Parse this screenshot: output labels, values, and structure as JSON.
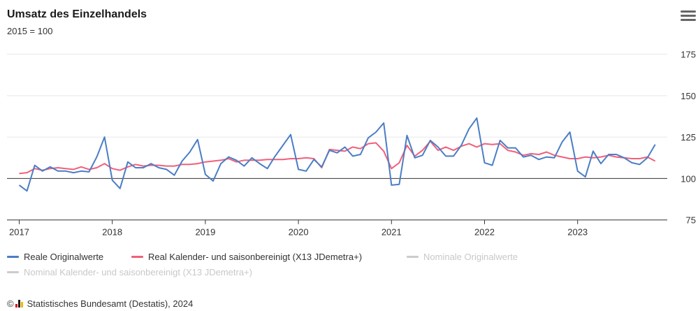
{
  "title": "Umsatz des Einzelhandels",
  "subtitle": "2015 = 100",
  "menu_icon": "hamburger-menu-icon",
  "source": {
    "copyright": "©",
    "logo_icon": "destatis-logo-icon",
    "text": "Statistisches Bundesamt (Destatis), 2024"
  },
  "colors": {
    "series_blue": "#4a7ec5",
    "series_red": "#f0607a",
    "inactive": "#cccccc",
    "gridline": "#e6e6e6",
    "baseline": "#333333"
  },
  "legend": [
    {
      "label": "Reale Originalwerte",
      "color": "#4a7ec5",
      "active": true
    },
    {
      "label": "Real Kalender- und saisonbereinigt (X13 JDemetra+)",
      "color": "#f0607a",
      "active": true
    },
    {
      "label": "Nominale Originalwerte",
      "color": "#cccccc",
      "active": false
    },
    {
      "label": "Nominal Kalender- und saisonbereinigt (X13 JDemetra+)",
      "color": "#cccccc",
      "active": false
    }
  ],
  "chart_data": {
    "type": "line",
    "title": "Umsatz des Einzelhandels",
    "subtitle": "2015 = 100",
    "x_start": "2017-01",
    "x_ticks": [
      "2017",
      "2018",
      "2019",
      "2020",
      "2021",
      "2022",
      "2023"
    ],
    "ylim": [
      75,
      175
    ],
    "y_ticks": [
      75,
      100,
      125,
      150,
      175
    ],
    "y_axis_side": "right",
    "reference_line": 100,
    "grid": true,
    "legend_position": "bottom",
    "series": [
      {
        "name": "Reale Originalwerte",
        "color": "#4a7ec5",
        "values": [
          96,
          92.5,
          108,
          104.5,
          107,
          104.5,
          104.5,
          103.5,
          104.5,
          104,
          113,
          125,
          99,
          94,
          110,
          106.5,
          106.5,
          109,
          106.5,
          105.5,
          102,
          110.5,
          116,
          123.5,
          102.5,
          98.5,
          109,
          113,
          111,
          107.5,
          112.5,
          109,
          106,
          113.5,
          120,
          126.5,
          105.5,
          104.5,
          111.5,
          107,
          117,
          115.5,
          119,
          113.5,
          114.5,
          124.5,
          128,
          133.5,
          96,
          96.5,
          126,
          112.5,
          114,
          123,
          119,
          113.5,
          113.5,
          120,
          130,
          136.5,
          109.5,
          108,
          123,
          118.5,
          118.5,
          113,
          114,
          111.5,
          113,
          112.5,
          122,
          128,
          104.5,
          101,
          116.5,
          109,
          114.5,
          114.5,
          112.5,
          109.5,
          108.5,
          112.5,
          120.5
        ]
      },
      {
        "name": "Real Kalender- und saisonbereinigt (X13 JDemetra+)",
        "color": "#f0607a",
        "values": [
          103,
          103.5,
          106,
          105,
          106,
          106.5,
          106,
          105.5,
          107,
          105.5,
          106.5,
          109,
          106,
          105,
          107,
          108.5,
          107.5,
          108,
          108,
          107.5,
          107.5,
          108.5,
          108.5,
          109,
          110,
          110.5,
          111,
          112,
          110,
          111,
          111,
          111,
          111.5,
          111.5,
          111.5,
          112,
          112,
          112.5,
          112,
          106.5,
          117.5,
          117,
          116.5,
          119,
          118,
          121,
          121.5,
          116.5,
          106,
          109.5,
          120,
          113.5,
          117,
          122.5,
          117,
          119,
          117,
          119.5,
          121,
          119,
          121,
          120.5,
          121,
          117,
          116,
          114,
          115,
          114.5,
          116,
          114,
          113,
          112,
          112,
          113,
          112.5,
          113,
          114,
          113,
          112.5,
          112,
          112,
          113,
          110.5
        ]
      }
    ]
  }
}
